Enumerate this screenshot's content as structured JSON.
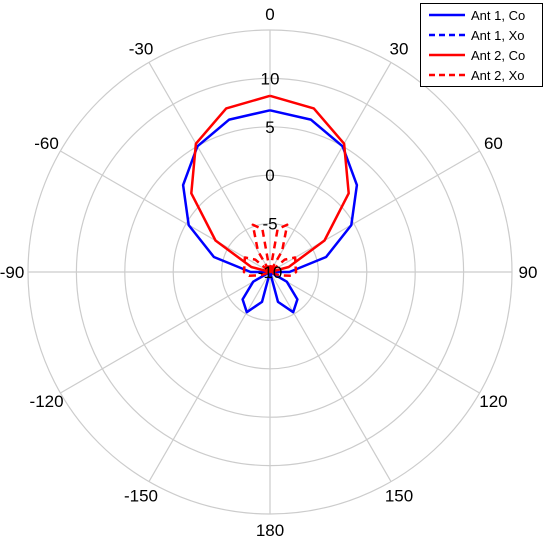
{
  "chart_data": {
    "type": "polar",
    "r_ticks": [
      "10",
      "5",
      "0",
      "-5",
      "-10"
    ],
    "r_min": -10,
    "r_max": 15,
    "theta_ticks": [
      "0",
      "30",
      "60",
      "90",
      "120",
      "150",
      "180",
      "-150",
      "-120",
      "-90",
      "-60",
      "-30"
    ],
    "grid": true,
    "legend_position": "top-right",
    "series": [
      {
        "name": "Ant 1, Co",
        "color": "#0000ff",
        "style": "solid",
        "theta": [
          0,
          15,
          30,
          45,
          60,
          75,
          90,
          105,
          120,
          135,
          150,
          165,
          180,
          195,
          210,
          225,
          240,
          255,
          270,
          285,
          300,
          315,
          330,
          345,
          360
        ],
        "r": [
          6.7,
          6.3,
          5.0,
          2.7,
          -0.3,
          -4.0,
          -8.0,
          -10.0,
          -8.0,
          -6.0,
          -5.2,
          -6.8,
          -10.0,
          -6.8,
          -5.2,
          -6.0,
          -8.0,
          -10.0,
          -8.0,
          -4.0,
          -0.3,
          2.7,
          5.0,
          6.3,
          6.7
        ]
      },
      {
        "name": "Ant 1, Xo",
        "color": "#0000ff",
        "style": "dashed",
        "theta": [
          0,
          90,
          180,
          270,
          360
        ],
        "r": [
          -10,
          -10,
          -10,
          -10,
          -10
        ]
      },
      {
        "name": "Ant 2, Co",
        "color": "#ff0000",
        "style": "solid",
        "theta": [
          0,
          15,
          30,
          45,
          60,
          75,
          90,
          105,
          120,
          135,
          150,
          165,
          180,
          195,
          210,
          225,
          240,
          255,
          270,
          285,
          300,
          315,
          330,
          345,
          360
        ],
        "r": [
          8.2,
          7.5,
          5.3,
          1.5,
          -3.5,
          -8.0,
          -10.0,
          -10.0,
          -10.0,
          -10.0,
          -10.0,
          -10.0,
          -10.0,
          -10.0,
          -10.0,
          -10.0,
          -10.0,
          -10.0,
          -10.0,
          -8.0,
          -3.5,
          1.5,
          5.3,
          7.5,
          8.2
        ]
      },
      {
        "name": "Ant 2, Xo",
        "color": "#ff0000",
        "style": "dashed",
        "theta": [
          0,
          10,
          20,
          30,
          40,
          50,
          60,
          70,
          80,
          90,
          100,
          110,
          120,
          180,
          240,
          250,
          260,
          270,
          280,
          290,
          300,
          310,
          320,
          330,
          340,
          350,
          360
        ],
        "r": [
          -10.0,
          -5.5,
          -4.8,
          -7.5,
          -10.0,
          -8.0,
          -7.0,
          -7.2,
          -7.3,
          -7.3,
          -7.8,
          -9.0,
          -10.0,
          -10.0,
          -10.0,
          -9.0,
          -7.8,
          -7.3,
          -7.3,
          -7.2,
          -7.0,
          -8.0,
          -10.0,
          -7.5,
          -4.8,
          -5.5,
          -10.0
        ]
      }
    ]
  }
}
